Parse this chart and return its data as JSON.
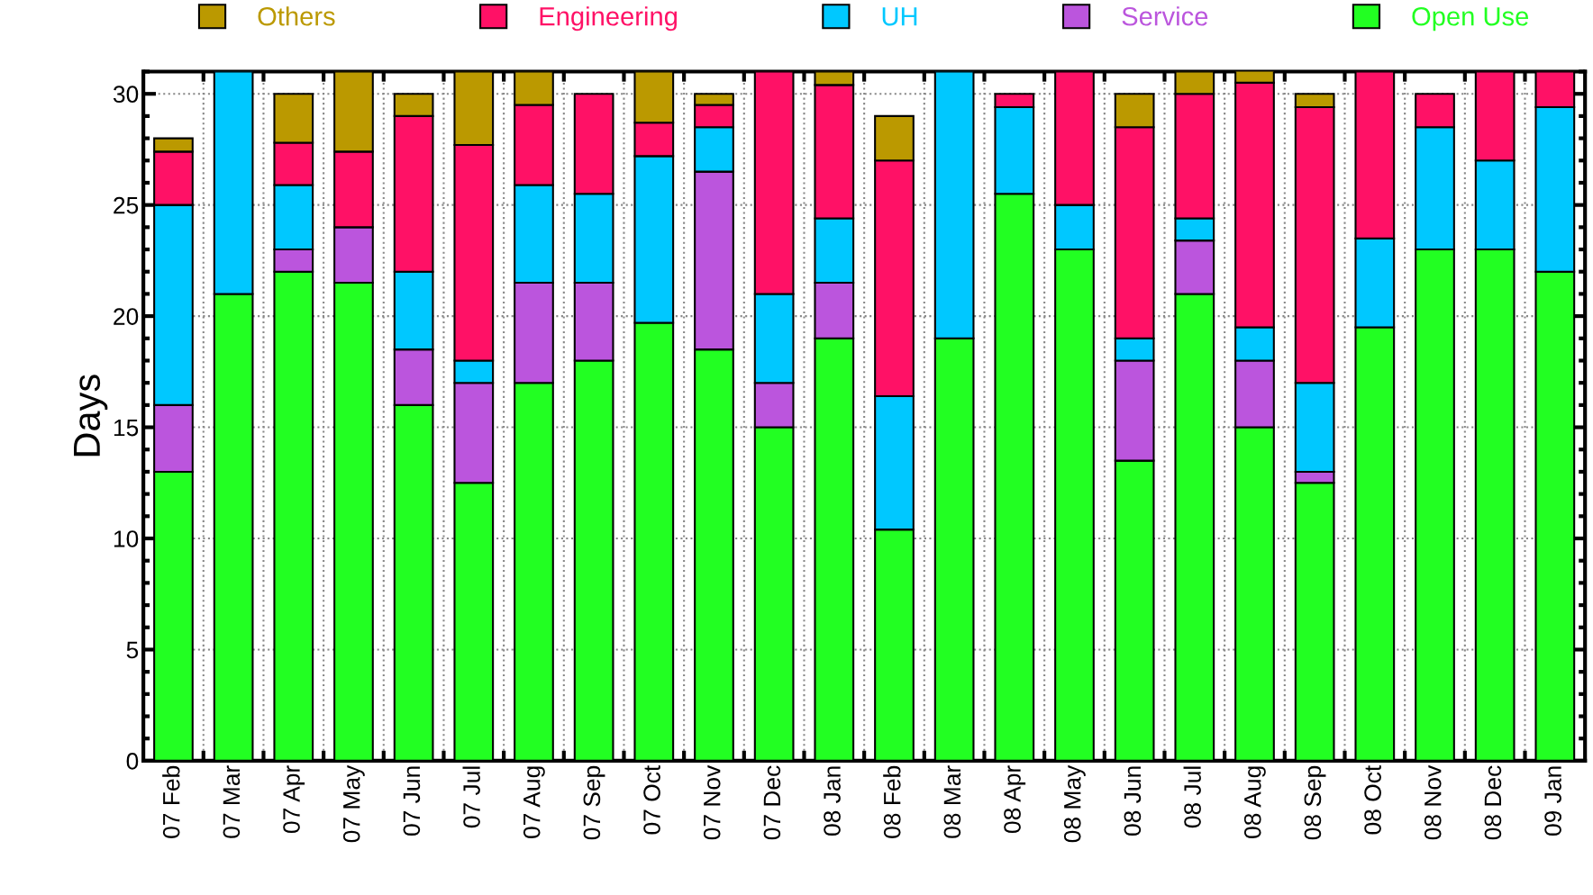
{
  "chart_data": {
    "type": "bar",
    "stacked": true,
    "ylabel": "Days",
    "categories": [
      "07 Feb",
      "07 Mar",
      "07 Apr",
      "07 May",
      "07 Jun",
      "07 Jul",
      "07 Aug",
      "07 Sep",
      "07 Oct",
      "07 Nov",
      "07 Dec",
      "08 Jan",
      "08 Feb",
      "08 Mar",
      "08 Apr",
      "08 May",
      "08 Jun",
      "08 Jul",
      "08 Aug",
      "08 Sep",
      "08 Oct",
      "08 Nov",
      "08 Dec",
      "09 Jan"
    ],
    "series": [
      {
        "name": "Open Use",
        "color": "#22ff22",
        "values": [
          13,
          21,
          22,
          21.5,
          16,
          12.5,
          17,
          18,
          19.7,
          18.5,
          15,
          19,
          10.4,
          19,
          25.5,
          23,
          13.5,
          21,
          15,
          12.5,
          19.5,
          23,
          23,
          22
        ]
      },
      {
        "name": "Service",
        "color": "#bb55dd",
        "values": [
          3,
          null,
          1,
          2.5,
          2.5,
          4.5,
          4.5,
          3.5,
          null,
          8,
          2,
          2.5,
          null,
          null,
          null,
          null,
          4.5,
          2.4,
          3,
          0.5,
          null,
          null,
          null,
          null
        ]
      },
      {
        "name": "UH",
        "color": "#00c8ff",
        "values": [
          9,
          10,
          2.9,
          null,
          3.5,
          1,
          4.4,
          4,
          7.5,
          2,
          4,
          2.9,
          6,
          12,
          3.9,
          2,
          1,
          1,
          1.5,
          4,
          4,
          5.5,
          4,
          7.4
        ]
      },
      {
        "name": "Engineering",
        "color": "#ff1166",
        "values": [
          2.4,
          null,
          1.9,
          3.4,
          7,
          9.7,
          3.6,
          4.5,
          1.5,
          1,
          10,
          6,
          10.6,
          null,
          0.6,
          6,
          9.5,
          5.6,
          11,
          12.4,
          7.5,
          1.5,
          4,
          1.6
        ]
      },
      {
        "name": "Others",
        "color": "#bb9900",
        "values": [
          0.6,
          null,
          2.2,
          3.6,
          1,
          3.3,
          1.5,
          null,
          2.3,
          0.5,
          null,
          0.6,
          2,
          null,
          null,
          null,
          1.5,
          1,
          0.6,
          0.6,
          null,
          null,
          null,
          null
        ]
      }
    ],
    "ylim": [
      0,
      31
    ],
    "yticks": [
      0,
      5,
      10,
      15,
      20,
      25,
      30
    ],
    "grid": true,
    "legend": "top"
  }
}
